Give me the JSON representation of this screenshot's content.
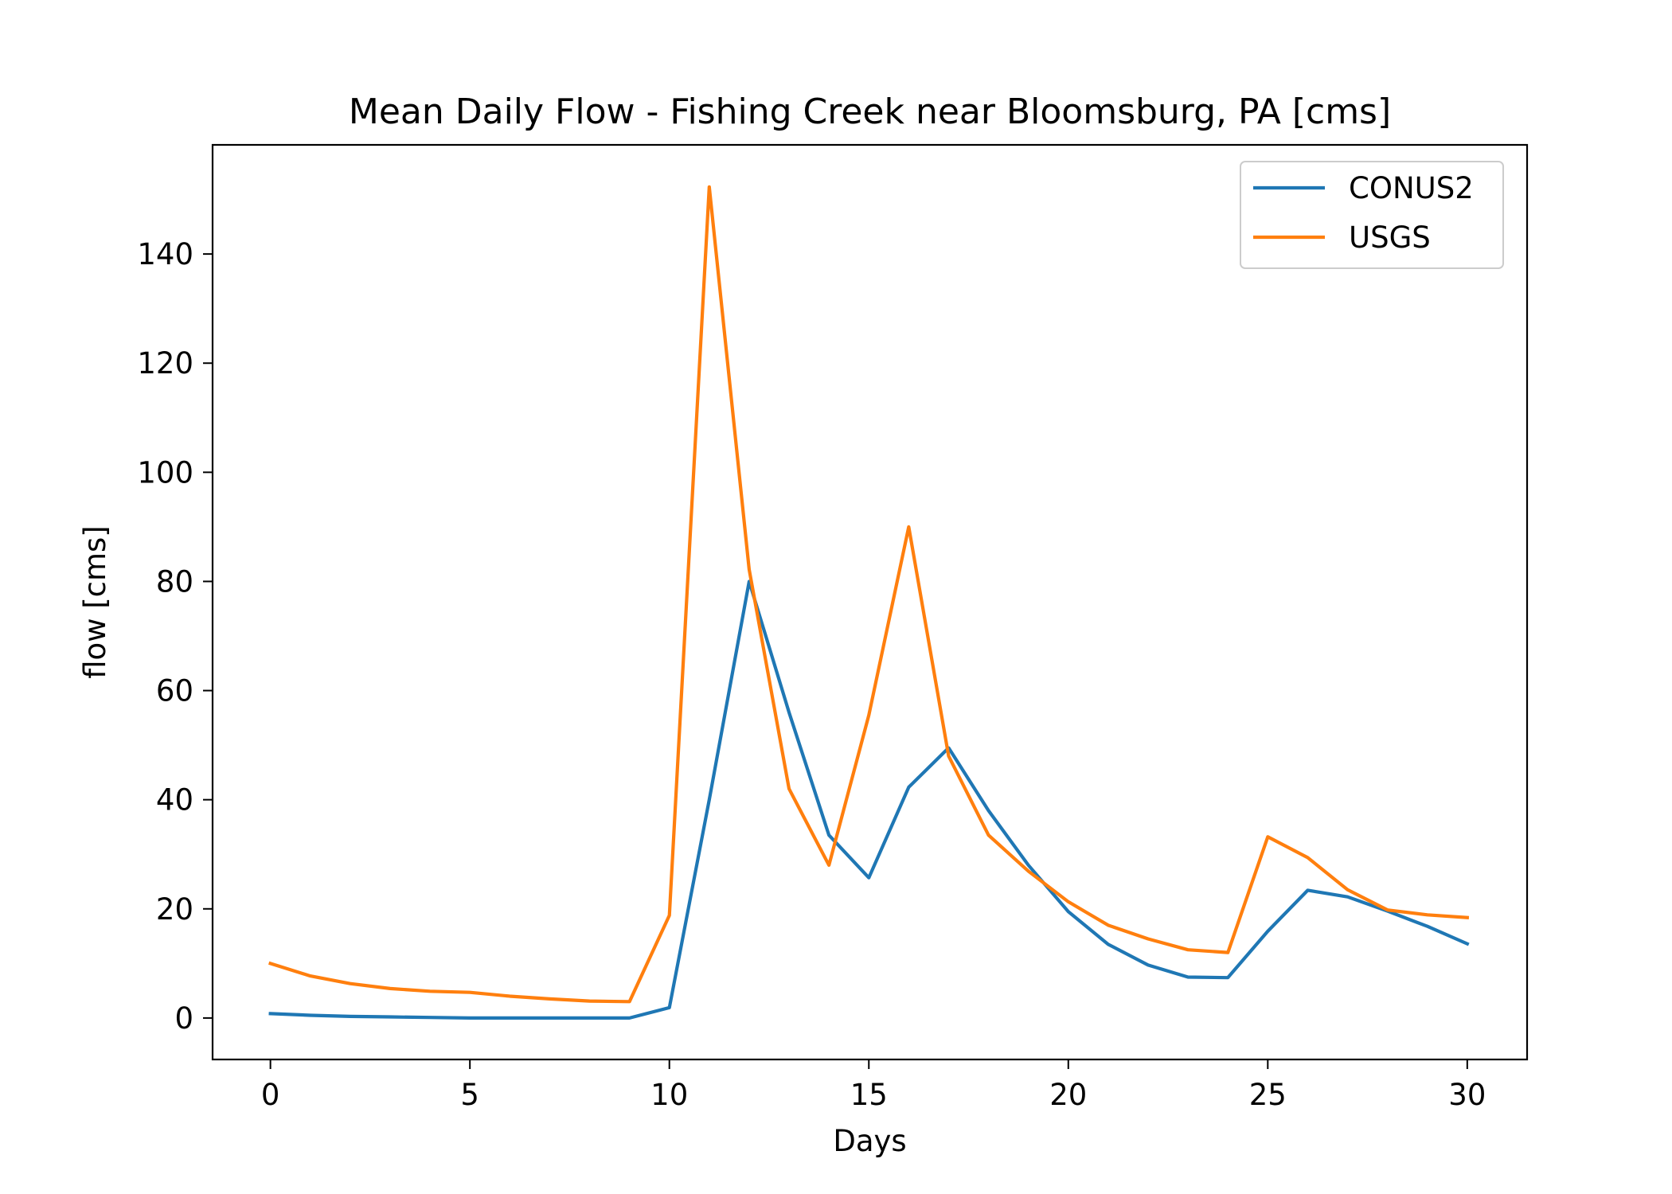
{
  "chart_data": {
    "type": "line",
    "title": "Mean Daily Flow - Fishing Creek near Bloomsburg, PA [cms]",
    "xlabel": "Days",
    "ylabel": "flow [cms]",
    "xlim": [
      -1.45,
      31.5
    ],
    "ylim": [
      -7.6,
      160
    ],
    "xticks": [
      0,
      5,
      10,
      15,
      20,
      25,
      30
    ],
    "yticks": [
      0,
      20,
      40,
      60,
      80,
      100,
      120,
      140
    ],
    "grid": false,
    "legend_position": "top-right",
    "x": [
      0,
      1,
      2,
      3,
      4,
      5,
      6,
      7,
      8,
      9,
      10,
      11,
      12,
      13,
      14,
      15,
      16,
      17,
      18,
      19,
      20,
      21,
      22,
      23,
      24,
      25,
      26,
      27,
      28,
      29,
      30
    ],
    "series": [
      {
        "name": "CONUS2",
        "color": "#1f77b4",
        "values": [
          0.8,
          0.5,
          0.3,
          0.2,
          0.1,
          0.0,
          0.0,
          0.0,
          0.0,
          0.0,
          1.9,
          40.0,
          80.0,
          56.0,
          33.5,
          25.7,
          42.3,
          49.5,
          38.0,
          28.0,
          19.5,
          13.5,
          9.7,
          7.5,
          7.4,
          15.9,
          23.4,
          22.2,
          19.6,
          16.8,
          13.6
        ]
      },
      {
        "name": "USGS",
        "color": "#ff7f0e",
        "values": [
          10.0,
          7.7,
          6.3,
          5.4,
          4.9,
          4.7,
          4.0,
          3.5,
          3.1,
          3.0,
          18.8,
          152.3,
          82.2,
          42.0,
          28.0,
          55.5,
          90.0,
          48.0,
          33.5,
          26.9,
          21.3,
          17.0,
          14.5,
          12.5,
          12.0,
          33.2,
          29.4,
          23.5,
          19.8,
          18.9,
          18.4
        ]
      }
    ]
  }
}
